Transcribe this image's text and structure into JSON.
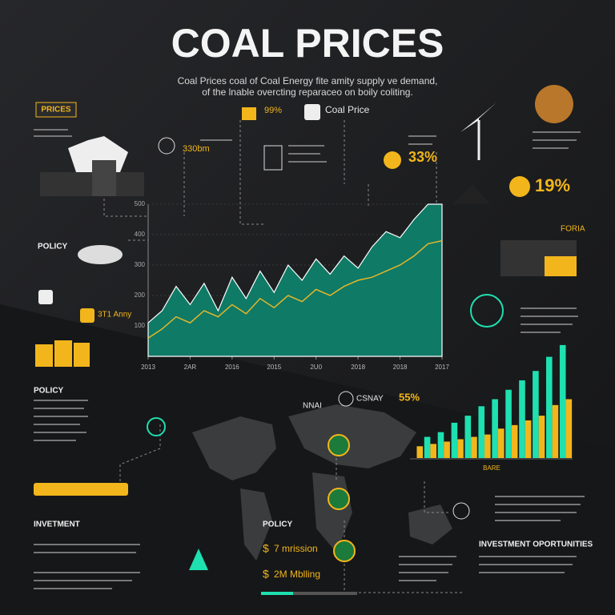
{
  "header": {
    "title": "COAL PRICES",
    "subtitle": [
      "Coal Prices coal of Coal Energy fite amity supply ve demand,",
      "of the lnable overcting reparaceo on boily coliting."
    ]
  },
  "labels": {
    "prices_box": "PRICES",
    "pct_top": "99%",
    "coal_price": "Coal Price",
    "amount_top": "330bm",
    "policy_1": "POLICY",
    "pct_33": "33%",
    "pct_19": "19%",
    "foria": "FORIA",
    "army": "3T1 Anny",
    "policy_2": "POLICY",
    "investment": "INVETMENT",
    "policy_3": "POLICY",
    "opportunities": "INVESTMENT OPORTUNITIES",
    "pct_55": "55%",
    "csnay": "CSNAY",
    "nnai": "NNAI",
    "money_1": "7 mrission",
    "money_2": "2M Mblling",
    "bars_label": "BARE"
  },
  "chart_data": [
    {
      "type": "area",
      "x": [
        0,
        1,
        2,
        3,
        4,
        5,
        6,
        7,
        8,
        9,
        10,
        11,
        12,
        13,
        14,
        15,
        16,
        17,
        18,
        19,
        20,
        21
      ],
      "xlim": [
        0,
        21
      ],
      "xticks": [
        {
          "value": 0,
          "label": "2013"
        },
        {
          "value": 3,
          "label": "2AR"
        },
        {
          "value": 6,
          "label": "2016"
        },
        {
          "value": 9,
          "label": "2015"
        },
        {
          "value": 12,
          "label": "2U0"
        },
        {
          "value": 15,
          "label": "2018"
        },
        {
          "value": 18,
          "label": "2018"
        },
        {
          "value": 21,
          "label": "2017"
        }
      ],
      "ylim": [
        0,
        500
      ],
      "yticks": [
        100,
        200,
        300,
        400,
        500
      ],
      "series": [
        {
          "color": "#0f7a66",
          "values": [
            110,
            150,
            230,
            170,
            240,
            150,
            260,
            190,
            280,
            210,
            300,
            250,
            320,
            270,
            330,
            290,
            360,
            410,
            390,
            450,
            500,
            500
          ]
        },
        {
          "color": "#e3b62a",
          "values": [
            60,
            90,
            130,
            110,
            150,
            130,
            170,
            140,
            190,
            160,
            200,
            180,
            220,
            200,
            230,
            250,
            260,
            280,
            300,
            330,
            370,
            380
          ]
        }
      ]
    },
    {
      "type": "bar",
      "categories": [
        null,
        null,
        null,
        null,
        null,
        null,
        null,
        null,
        null,
        null,
        null,
        null
      ],
      "ylim": [
        0,
        100
      ],
      "series": [
        {
          "color": "#1ee0b0",
          "values": [
            0,
            18,
            22,
            30,
            36,
            44,
            50,
            58,
            66,
            74,
            86,
            96
          ]
        },
        {
          "color": "#f2b61c",
          "values": [
            10,
            12,
            14,
            16,
            18,
            20,
            25,
            28,
            32,
            36,
            45,
            50
          ]
        }
      ]
    }
  ]
}
